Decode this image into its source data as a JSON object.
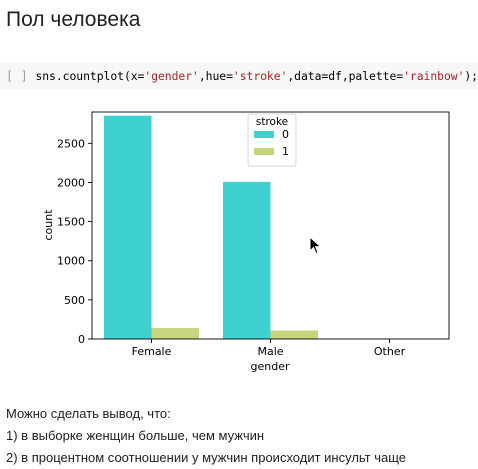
{
  "heading": "Пол человека",
  "code_cell": {
    "prompt": "[ ]",
    "code_parts": [
      "sns.countplot(x=",
      "'gender'",
      ",hue=",
      "'stroke'",
      ",data=df,palette=",
      "'rainbow'",
      ");"
    ]
  },
  "chart_data": {
    "type": "bar",
    "categories": [
      "Female",
      "Male",
      "Other"
    ],
    "xlabel": "gender",
    "ylabel": "count",
    "ylim": [
      0,
      2900
    ],
    "yticks": [
      0,
      500,
      1000,
      1500,
      2000,
      2500
    ],
    "legend": {
      "title": "stroke",
      "placement": "upper center"
    },
    "series": [
      {
        "name": "0",
        "color": "#3fd0d0",
        "values": [
          2853,
          2007,
          1
        ]
      },
      {
        "name": "1",
        "color": "#c6d67e",
        "values": [
          141,
          108,
          0
        ]
      }
    ]
  },
  "markdown": {
    "line1": "Можно сделать вывод, что:",
    "line2": "1) в выборке женщин больше, чем мужчин",
    "line3": "2) в процентном соотношении у мужчин происходит инсульт чаще"
  }
}
